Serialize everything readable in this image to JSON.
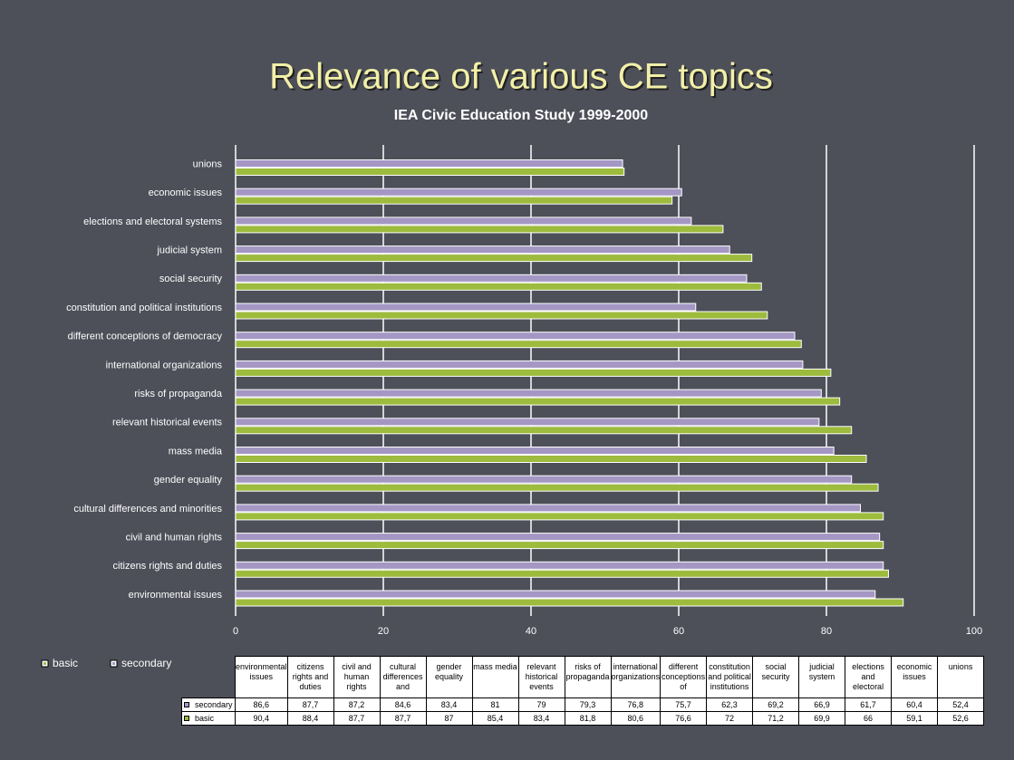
{
  "chart_data": {
    "type": "bar",
    "orientation": "horizontal",
    "title": "Relevance of various CE topics",
    "subtitle": "IEA Civic Education Study 1999-2000",
    "categories": [
      "environmental issues",
      "citizens rights and duties",
      "civil and human rights",
      "cultural differences and minorities",
      "gender equality",
      "mass media",
      "relevant historical events",
      "risks of propaganda",
      "international organizations",
      "different conceptions of democracy",
      "constitution and political institutions",
      "social security",
      "judicial system",
      "elections and electoral systems",
      "economic issues",
      "unions"
    ],
    "series": [
      {
        "name": "secondary",
        "color": "#a497c4",
        "values": [
          86.6,
          87.7,
          87.2,
          84.6,
          83.4,
          81,
          79,
          79.3,
          76.8,
          75.7,
          62.3,
          69.2,
          66.9,
          61.7,
          60.4,
          52.4
        ],
        "value_labels": [
          "86,6",
          "87,7",
          "87,2",
          "84,6",
          "83,4",
          "81",
          "79",
          "79,3",
          "76,8",
          "75,7",
          "62,3",
          "69,2",
          "66,9",
          "61,7",
          "60,4",
          "52,4"
        ]
      },
      {
        "name": "basic",
        "color": "#9dbb3c",
        "values": [
          90.4,
          88.4,
          87.7,
          87.7,
          87,
          85.4,
          83.4,
          81.8,
          80.6,
          76.6,
          72,
          71.2,
          69.9,
          66,
          59.1,
          52.6
        ],
        "value_labels": [
          "90,4",
          "88,4",
          "87,7",
          "87,7",
          "87",
          "85,4",
          "83,4",
          "81,8",
          "80,6",
          "76,6",
          "72",
          "71,2",
          "69,9",
          "66",
          "59,1",
          "52,6"
        ]
      }
    ],
    "xlim": [
      0,
      100
    ],
    "xticks": [
      0,
      20,
      40,
      60,
      80,
      100
    ],
    "grid": true
  }
}
